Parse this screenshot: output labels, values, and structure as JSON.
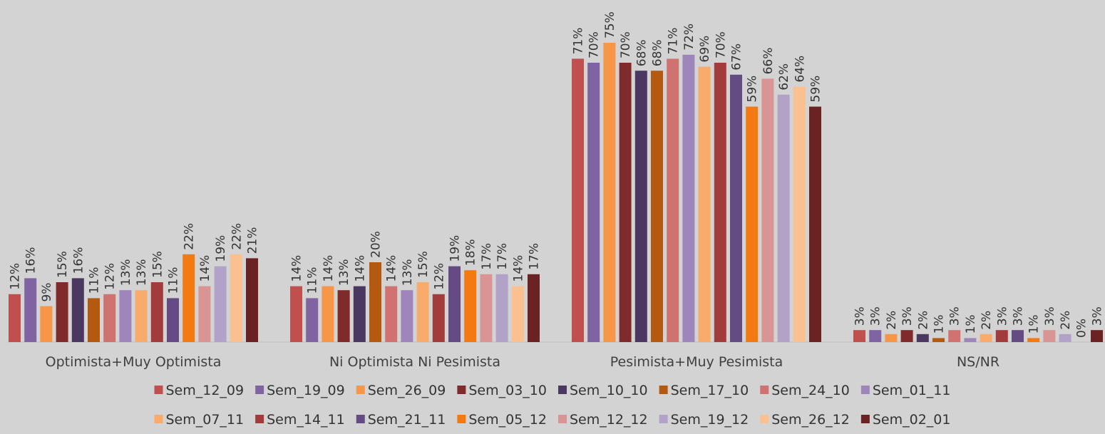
{
  "chart_data": {
    "type": "bar",
    "categories": [
      "Optimista+Muy Optimista",
      "Ni Optimista Ni Pesimista",
      "Pesimista+Muy Pesimista",
      "NS/NR"
    ],
    "value_suffix": "%",
    "ylim": [
      0,
      80
    ],
    "grid": false,
    "legend_position": "bottom",
    "series": [
      {
        "name": "Sem_12_09",
        "color": "#c0504d",
        "values": [
          12,
          14,
          71,
          3
        ]
      },
      {
        "name": "Sem_19_09",
        "color": "#8064a2",
        "values": [
          16,
          11,
          70,
          3
        ]
      },
      {
        "name": "Sem_26_09",
        "color": "#f79646",
        "values": [
          9,
          14,
          75,
          2
        ]
      },
      {
        "name": "Sem_03_10",
        "color": "#7f2b2b",
        "values": [
          15,
          13,
          70,
          3
        ]
      },
      {
        "name": "Sem_10_10",
        "color": "#4a3860",
        "values": [
          16,
          14,
          68,
          2
        ]
      },
      {
        "name": "Sem_17_10",
        "color": "#b35a10",
        "values": [
          11,
          20,
          68,
          1
        ]
      },
      {
        "name": "Sem_24_10",
        "color": "#d07370",
        "values": [
          12,
          14,
          71,
          3
        ]
      },
      {
        "name": "Sem_01_11",
        "color": "#9e86ba",
        "values": [
          13,
          13,
          72,
          1
        ]
      },
      {
        "name": "Sem_07_11",
        "color": "#f9ab6b",
        "values": [
          13,
          15,
          69,
          2
        ]
      },
      {
        "name": "Sem_14_11",
        "color": "#a23b3b",
        "values": [
          15,
          12,
          70,
          3
        ]
      },
      {
        "name": "Sem_21_11",
        "color": "#644b83",
        "values": [
          11,
          19,
          67,
          3
        ]
      },
      {
        "name": "Sem_05_12",
        "color": "#f37a10",
        "values": [
          22,
          18,
          59,
          1
        ]
      },
      {
        "name": "Sem_12_12",
        "color": "#d99594",
        "values": [
          14,
          17,
          66,
          3
        ]
      },
      {
        "name": "Sem_19_12",
        "color": "#b3a2c7",
        "values": [
          19,
          17,
          62,
          2
        ]
      },
      {
        "name": "Sem_26_12",
        "color": "#fac08f",
        "values": [
          22,
          14,
          64,
          0
        ]
      },
      {
        "name": "Sem_02_01",
        "color": "#6b2222",
        "values": [
          21,
          17,
          59,
          3
        ]
      }
    ]
  }
}
